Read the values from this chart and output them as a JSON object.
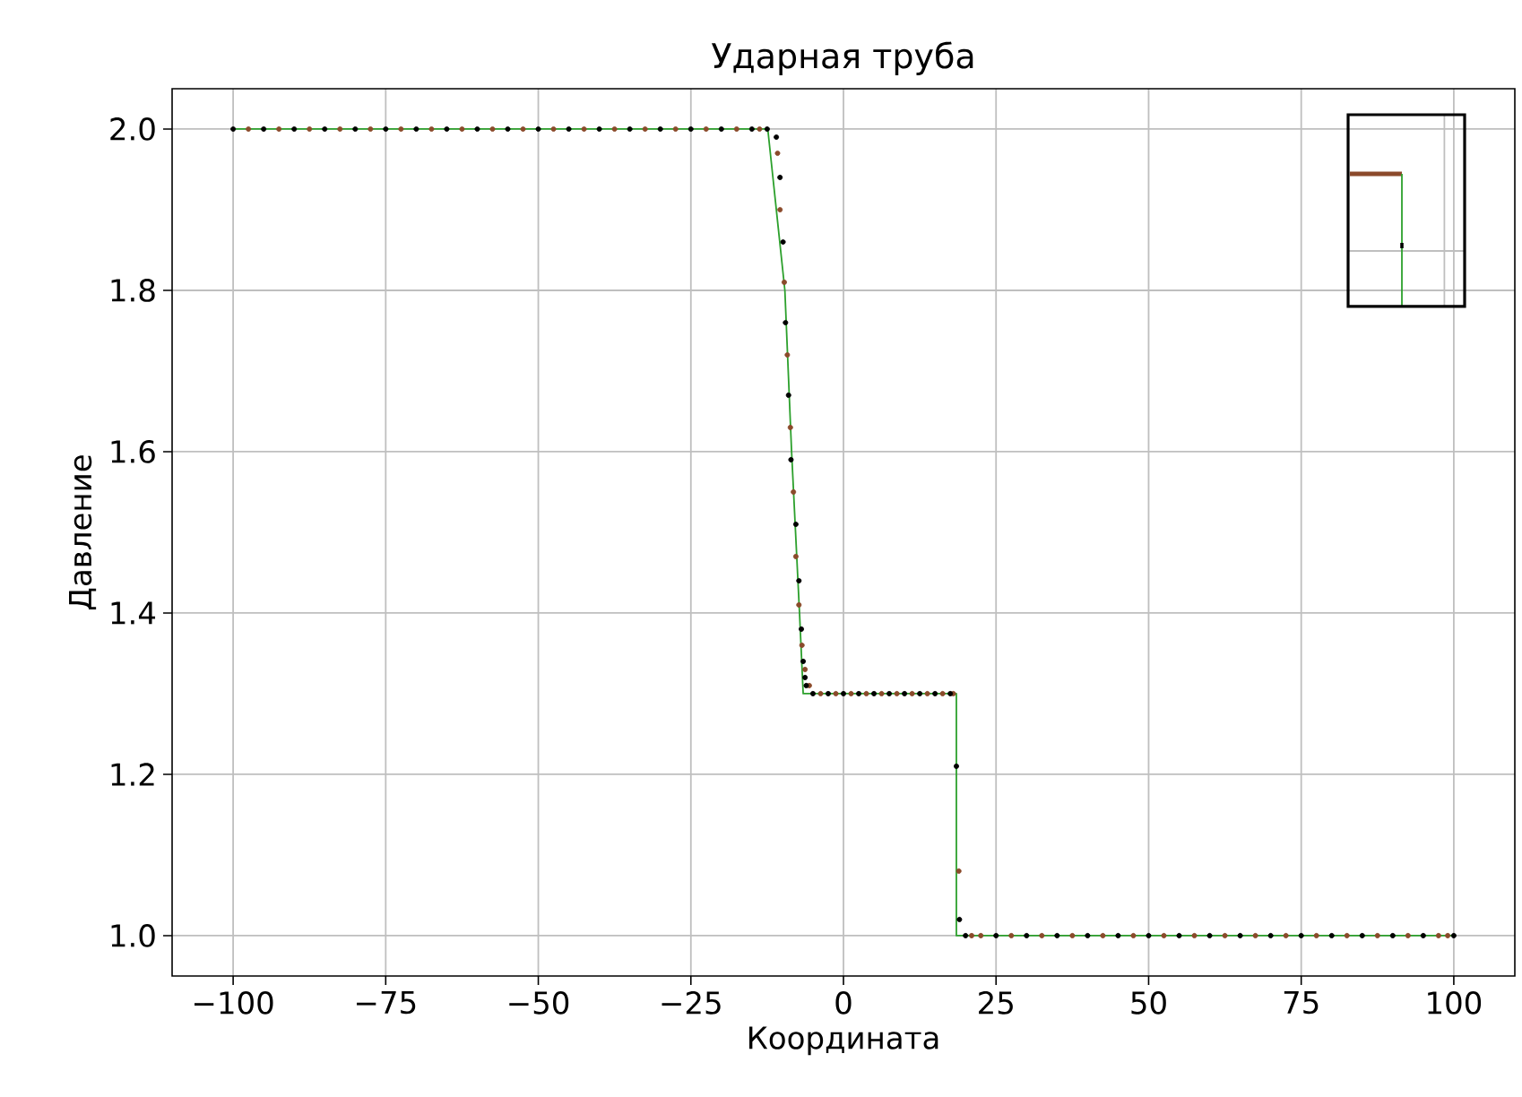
{
  "chart_data": {
    "type": "line",
    "title": "Ударная труба",
    "xlabel": "Координата",
    "ylabel": "Давление",
    "xlim": [
      -110,
      110
    ],
    "ylim": [
      0.95,
      2.05
    ],
    "grid": true,
    "xticks": [
      {
        "value": -100,
        "label": "−100"
      },
      {
        "value": -75,
        "label": "−75"
      },
      {
        "value": -50,
        "label": "−50"
      },
      {
        "value": -25,
        "label": "−25"
      },
      0,
      25,
      50,
      75,
      100
    ],
    "yticks": [
      {
        "value": 1.0,
        "label": "1.0"
      },
      {
        "value": 1.2,
        "label": "1.2"
      },
      {
        "value": 1.4,
        "label": "1.4"
      },
      {
        "value": 1.6,
        "label": "1.6"
      },
      {
        "value": 1.8,
        "label": "1.8"
      },
      {
        "value": 2.0,
        "label": "2.0"
      }
    ],
    "series": [
      {
        "type": "line",
        "color": "#2ca02c",
        "marker": "none",
        "x": [
          -100,
          -12.4,
          -9.6,
          -8.5,
          -7.2,
          -6.6,
          18.5,
          18.5,
          100
        ],
        "values": [
          2.0,
          2.0,
          1.8,
          1.6,
          1.4,
          1.3,
          1.3,
          1.0,
          1.0
        ]
      },
      {
        "type": "scatter",
        "color": "#8b4a2b",
        "marker": "circle",
        "x": [
          -97.5,
          -92.5,
          -87.5,
          -82.5,
          -77.5,
          -72.5,
          -67.5,
          -62.5,
          -57.5,
          -52.5,
          -47.5,
          -42.5,
          -37.5,
          -32.5,
          -27.5,
          -22.5,
          -17.5,
          -13.75,
          -10.8,
          -10.4,
          -9.7,
          -9.2,
          -8.7,
          -8.2,
          -7.8,
          -7.3,
          -6.8,
          -6.3,
          -5.6,
          -3.75,
          -1.25,
          1.25,
          3.75,
          6.25,
          8.75,
          11.25,
          13.75,
          16.25,
          18.0,
          18.9,
          21,
          22.5,
          27.5,
          32.5,
          37.5,
          42.5,
          47.5,
          52.5,
          57.5,
          62.5,
          67.5,
          72.5,
          77.5,
          82.5,
          87.5,
          92.5,
          97.5,
          99
        ],
        "values": [
          2.0,
          2.0,
          2.0,
          2.0,
          2.0,
          2.0,
          2.0,
          2.0,
          2.0,
          2.0,
          2.0,
          2.0,
          2.0,
          2.0,
          2.0,
          2.0,
          2.0,
          2.0,
          1.97,
          1.9,
          1.81,
          1.72,
          1.63,
          1.55,
          1.47,
          1.41,
          1.36,
          1.33,
          1.31,
          1.3,
          1.3,
          1.3,
          1.3,
          1.3,
          1.3,
          1.3,
          1.3,
          1.3,
          1.3,
          1.08,
          1.0,
          1.0,
          1.0,
          1.0,
          1.0,
          1.0,
          1.0,
          1.0,
          1.0,
          1.0,
          1.0,
          1.0,
          1.0,
          1.0,
          1.0,
          1.0,
          1.0,
          1.0
        ]
      },
      {
        "type": "scatter",
        "color": "#000000",
        "marker": "circle",
        "x": [
          -100,
          -95,
          -90,
          -85,
          -80,
          -75,
          -70,
          -65,
          -60,
          -55,
          -50,
          -45,
          -40,
          -35,
          -30,
          -25,
          -20,
          -15,
          -12.5,
          -11.0,
          -10.4,
          -9.9,
          -9.5,
          -9.0,
          -8.6,
          -7.8,
          -7.3,
          -6.9,
          -6.6,
          -6.3,
          -6.1,
          -5,
          -2.5,
          0,
          2.5,
          5,
          7.5,
          10,
          12.5,
          15,
          17.5,
          18.5,
          19.0,
          20,
          25,
          30,
          35,
          40,
          45,
          50,
          55,
          60,
          65,
          70,
          75,
          80,
          85,
          90,
          95,
          100
        ],
        "values": [
          2.0,
          2.0,
          2.0,
          2.0,
          2.0,
          2.0,
          2.0,
          2.0,
          2.0,
          2.0,
          2.0,
          2.0,
          2.0,
          2.0,
          2.0,
          2.0,
          2.0,
          2.0,
          2.0,
          1.99,
          1.94,
          1.86,
          1.76,
          1.67,
          1.59,
          1.51,
          1.44,
          1.38,
          1.34,
          1.32,
          1.31,
          1.3,
          1.3,
          1.3,
          1.3,
          1.3,
          1.3,
          1.3,
          1.3,
          1.3,
          1.3,
          1.21,
          1.02,
          1.0,
          1.0,
          1.0,
          1.0,
          1.0,
          1.0,
          1.0,
          1.0,
          1.0,
          1.0,
          1.0,
          1.0,
          1.0,
          1.0,
          1.0,
          1.0,
          1.0
        ]
      }
    ]
  }
}
